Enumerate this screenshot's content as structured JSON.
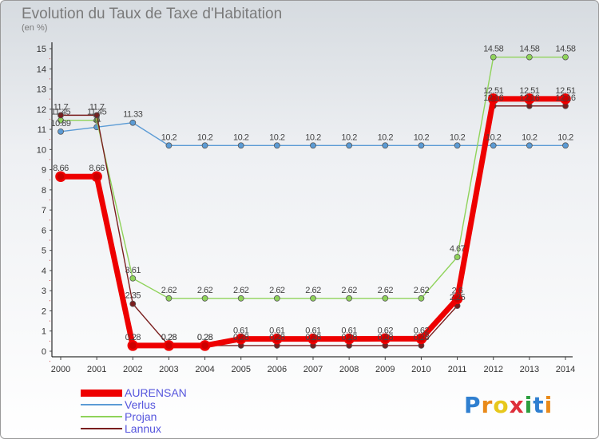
{
  "title": "Evolution du Taux de Taxe d'Habitation",
  "subtitle": "(en %)",
  "logo": {
    "text": "Proxiti",
    "colors": [
      "#2f7fd0",
      "#e98a1a",
      "#e7c81c",
      "#de2f3a",
      "#2b9e3e",
      "#2f7fd0",
      "#e98a1a"
    ]
  },
  "chart_data": {
    "type": "line",
    "title": "Evolution du Taux de Taxe d'Habitation",
    "ylabel": "(en %)",
    "xlabel": "",
    "x": [
      "2000",
      "2001",
      "2002",
      "2003",
      "2004",
      "2005",
      "2006",
      "2007",
      "2008",
      "2009",
      "2010",
      "2011",
      "2012",
      "2013",
      "2014"
    ],
    "ylim": [
      0,
      15
    ],
    "yticks": [
      "0",
      "1",
      "2",
      "3",
      "4",
      "5",
      "6",
      "7",
      "8",
      "9",
      "10",
      "11",
      "12",
      "13",
      "14",
      "15"
    ],
    "grid": false,
    "legend_position": "bottom-left",
    "series": [
      {
        "name": "AURENSAN",
        "color": "#ee0000",
        "values": [
          8.66,
          8.66,
          0.28,
          0.28,
          0.28,
          0.61,
          0.61,
          0.61,
          0.61,
          0.62,
          0.62,
          2.6,
          12.51,
          12.51,
          12.51
        ],
        "labels": [
          "8.66",
          "8.66",
          "0.28",
          "0.28",
          "0.28",
          "0.61",
          "0.61",
          "0.61",
          "0.61",
          "0.62",
          "0.62",
          "2.6",
          "12.51",
          "12.51",
          "12.51"
        ]
      },
      {
        "name": "Verlus",
        "color": "#5b9bd5",
        "values": [
          10.89,
          11.11,
          11.33,
          10.2,
          10.2,
          10.2,
          10.2,
          10.2,
          10.2,
          10.2,
          10.2,
          10.2,
          10.2,
          10.2,
          10.2
        ],
        "labels": [
          "10.89",
          "11",
          "11.33",
          "10.2",
          "10.2",
          "10.2",
          "10.2",
          "10.2",
          "10.2",
          "10.2",
          "10.2",
          "10.2",
          "10.2",
          "10.2",
          "10.2"
        ]
      },
      {
        "name": "Projan",
        "color": "#8fd35a",
        "values": [
          11.45,
          11.45,
          3.61,
          2.62,
          2.62,
          2.62,
          2.62,
          2.62,
          2.62,
          2.62,
          2.62,
          4.67,
          14.58,
          14.58,
          14.58
        ],
        "labels": [
          "11.45",
          "11.45",
          "3.61",
          "2.62",
          "2.62",
          "2.62",
          "2.62",
          "2.62",
          "2.62",
          "2.62",
          "2.62",
          "4.67",
          "14.58",
          "14.58",
          "14.58"
        ]
      },
      {
        "name": "Lannux",
        "color": "#7a1e1e",
        "values": [
          11.7,
          11.7,
          2.35,
          0.28,
          0.28,
          0.28,
          0.28,
          0.28,
          0.28,
          0.28,
          0.28,
          2.25,
          12.16,
          12.16,
          12.16
        ],
        "labels": [
          "11.7",
          "11.7",
          "2.35",
          "0.28",
          "0.28",
          "0.28",
          "0.28",
          "0.28",
          "0.28",
          "0.28",
          "0.28",
          "2.25",
          "12.16",
          "12.16",
          "12.16"
        ]
      }
    ]
  }
}
